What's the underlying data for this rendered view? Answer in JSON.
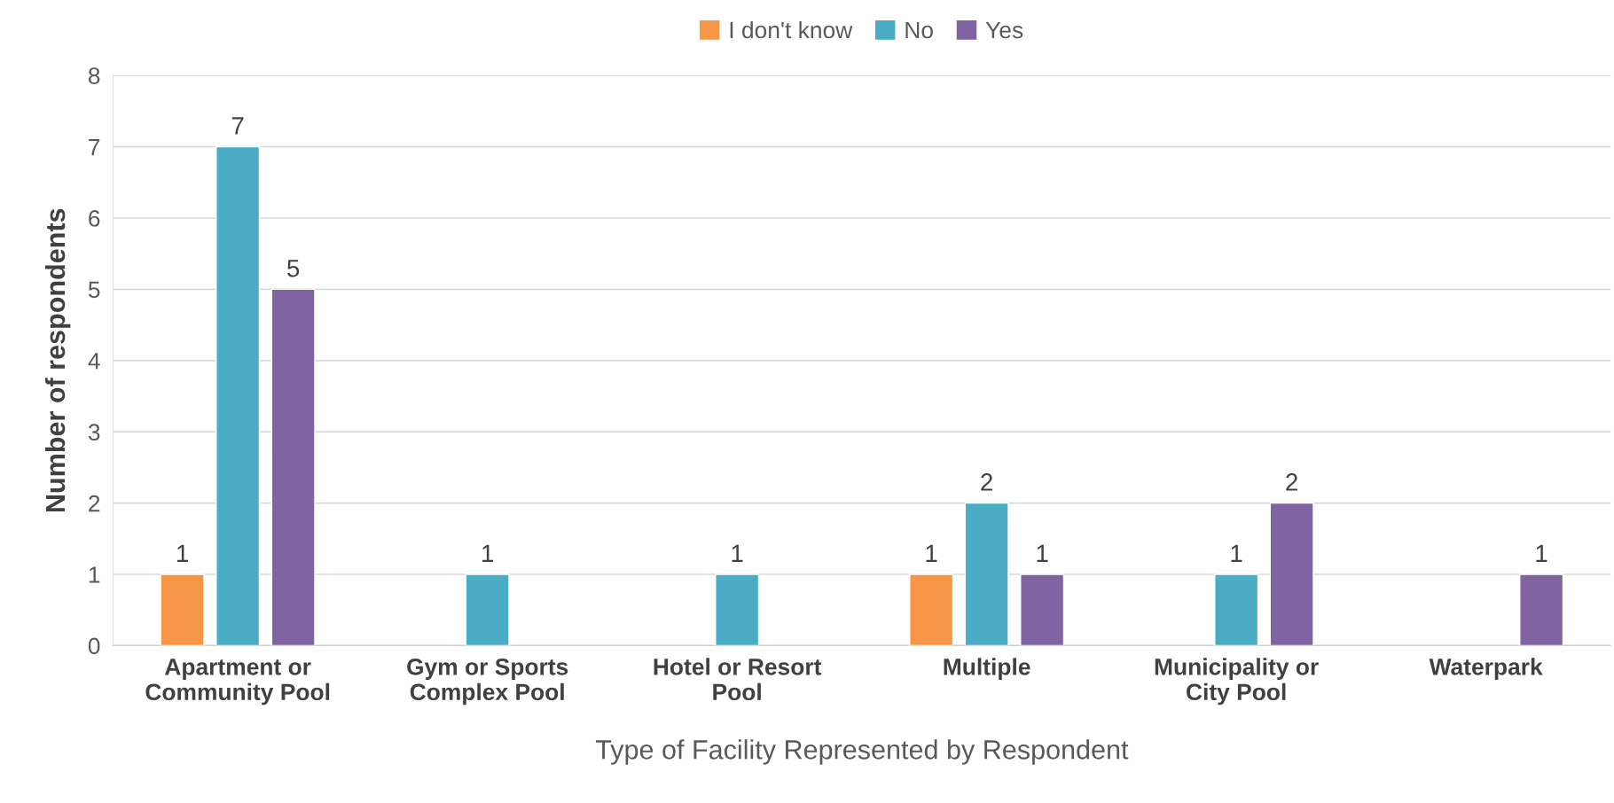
{
  "chart_data": {
    "type": "bar",
    "xlabel": "Type of Facility Represented by Respondent",
    "ylabel": "Number of respondents",
    "categories": [
      "Apartment or\nCommunity Pool",
      "Gym or Sports\nComplex Pool",
      "Hotel or Resort\nPool",
      "Multiple",
      "Municipality or\nCity Pool",
      "Waterpark"
    ],
    "series": [
      {
        "name": "I don't know",
        "color": "#f79646",
        "values": [
          1,
          null,
          null,
          1,
          null,
          null
        ]
      },
      {
        "name": "No",
        "color": "#4bacc6",
        "values": [
          7,
          1,
          1,
          2,
          1,
          null
        ]
      },
      {
        "name": "Yes",
        "color": "#8064a2",
        "values": [
          5,
          null,
          null,
          1,
          2,
          1
        ]
      }
    ],
    "ylim": [
      0,
      8
    ],
    "yticks": [
      0,
      1,
      2,
      3,
      4,
      5,
      6,
      7,
      8
    ],
    "grid": "y",
    "legend": "top",
    "data_labels": true
  }
}
